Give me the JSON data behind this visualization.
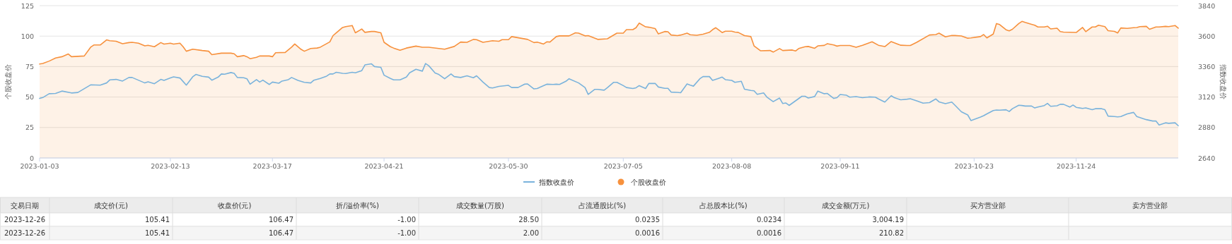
{
  "chart_data": [
    {
      "type": "line",
      "ylabel": "个股收盘价",
      "y2label": "指数收盘价",
      "ylim": [
        0,
        125
      ],
      "yticks": [
        0,
        25,
        50,
        75,
        100,
        125
      ],
      "y2lim": [
        2640,
        3840
      ],
      "y2ticks": [
        2640,
        2880,
        3120,
        3360,
        3600,
        3840
      ],
      "xlim": [
        "2023-01-03",
        "2023-12-26"
      ],
      "xticks": [
        "2023-01-03",
        "2023-02-13",
        "2023-03-17",
        "2023-04-21",
        "2023-05-30",
        "2023-07-05",
        "2023-08-08",
        "2023-09-11",
        "2023-10-23",
        "2023-11-24"
      ],
      "grid": "y",
      "legend": "bottom",
      "series": [
        {
          "name": "指数收盘价",
          "type": "line",
          "axis": "y2",
          "color": "#7ab3dc",
          "x": [
            "2023-01-03",
            "2023-01-04",
            "2023-01-06",
            "2023-01-08",
            "2023-01-10",
            "2023-01-13",
            "2023-01-15",
            "2023-01-19",
            "2023-01-22",
            "2023-01-24",
            "2023-01-25",
            "2023-01-27",
            "2023-01-29",
            "2023-01-31",
            "2023-02-01",
            "2023-02-05",
            "2023-02-06",
            "2023-02-08",
            "2023-02-10",
            "2023-02-11",
            "2023-02-13",
            "2023-02-14",
            "2023-02-16",
            "2023-02-17",
            "2023-02-18",
            "2023-02-20",
            "2023-02-21",
            "2023-02-23",
            "2023-02-25",
            "2023-02-26",
            "2023-02-28",
            "2023-03-01",
            "2023-03-02",
            "2023-03-04",
            "2023-03-05",
            "2023-03-06",
            "2023-03-08",
            "2023-03-09",
            "2023-03-10",
            "2023-03-12",
            "2023-03-13",
            "2023-03-14",
            "2023-03-16",
            "2023-03-17",
            "2023-03-19",
            "2023-03-20",
            "2023-03-22",
            "2023-03-23",
            "2023-03-25",
            "2023-03-27",
            "2023-03-29",
            "2023-03-30",
            "2023-04-01",
            "2023-04-03",
            "2023-04-04",
            "2023-04-05",
            "2023-04-06",
            "2023-04-08",
            "2023-04-09",
            "2023-04-11",
            "2023-04-12",
            "2023-04-14",
            "2023-04-15",
            "2023-04-17",
            "2023-04-18",
            "2023-04-20",
            "2023-04-21",
            "2023-04-23",
            "2023-04-24",
            "2023-04-26",
            "2023-04-28",
            "2023-04-29",
            "2023-05-01",
            "2023-05-03",
            "2023-05-04",
            "2023-05-05",
            "2023-05-07",
            "2023-05-08",
            "2023-05-10",
            "2023-05-12",
            "2023-05-13",
            "2023-05-15",
            "2023-05-17",
            "2023-05-19",
            "2023-05-20",
            "2023-05-22",
            "2023-05-24",
            "2023-05-25",
            "2023-05-27",
            "2023-05-30",
            "2023-05-31",
            "2023-06-02",
            "2023-06-04",
            "2023-06-05",
            "2023-06-07",
            "2023-06-08",
            "2023-06-11",
            "2023-06-13",
            "2023-06-14",
            "2023-06-15",
            "2023-06-17",
            "2023-06-18",
            "2023-06-21",
            "2023-06-23",
            "2023-06-24",
            "2023-06-26",
            "2023-06-27",
            "2023-06-29",
            "2023-06-30",
            "2023-07-02",
            "2023-07-03",
            "2023-07-05",
            "2023-07-06",
            "2023-07-08",
            "2023-07-09",
            "2023-07-10",
            "2023-07-12",
            "2023-07-13",
            "2023-07-15",
            "2023-07-16",
            "2023-07-18",
            "2023-07-19",
            "2023-07-20",
            "2023-07-22",
            "2023-07-23",
            "2023-07-25",
            "2023-07-26",
            "2023-07-27",
            "2023-07-29",
            "2023-07-30",
            "2023-08-01",
            "2023-08-02",
            "2023-08-04",
            "2023-08-05",
            "2023-08-06",
            "2023-08-08",
            "2023-08-09",
            "2023-08-11",
            "2023-08-12",
            "2023-08-14",
            "2023-08-15",
            "2023-08-16",
            "2023-08-18",
            "2023-08-19",
            "2023-08-21",
            "2023-08-23",
            "2023-08-24",
            "2023-08-25",
            "2023-08-26",
            "2023-08-28",
            "2023-08-30",
            "2023-08-31",
            "2023-09-01",
            "2023-09-03",
            "2023-09-04",
            "2023-09-06",
            "2023-09-07",
            "2023-09-09",
            "2023-09-10",
            "2023-09-11",
            "2023-09-13",
            "2023-09-14",
            "2023-09-16",
            "2023-09-18",
            "2023-09-20",
            "2023-09-22",
            "2023-09-23",
            "2023-09-25",
            "2023-09-27",
            "2023-09-28",
            "2023-09-30",
            "2023-10-02",
            "2023-10-03",
            "2023-10-05",
            "2023-10-07",
            "2023-10-09",
            "2023-10-11",
            "2023-10-12",
            "2023-10-14",
            "2023-10-16",
            "2023-10-17",
            "2023-10-19",
            "2023-10-21",
            "2023-10-22",
            "2023-10-25",
            "2023-10-26",
            "2023-10-27",
            "2023-10-29",
            "2023-10-30",
            "2023-10-31",
            "2023-11-02",
            "2023-11-03",
            "2023-11-04",
            "2023-11-06",
            "2023-11-07",
            "2023-11-08",
            "2023-11-10",
            "2023-11-11",
            "2023-11-12",
            "2023-11-14",
            "2023-11-15",
            "2023-11-16",
            "2023-11-18",
            "2023-11-19",
            "2023-11-20",
            "2023-11-22",
            "2023-11-23",
            "2023-11-24",
            "2023-11-26",
            "2023-11-27",
            "2023-11-29",
            "2023-11-30",
            "2023-12-02",
            "2023-12-03",
            "2023-12-04",
            "2023-12-06",
            "2023-12-07",
            "2023-12-08",
            "2023-12-10",
            "2023-12-12",
            "2023-12-13",
            "2023-12-14",
            "2023-12-16",
            "2023-12-18",
            "2023-12-19",
            "2023-12-20",
            "2023-12-22",
            "2023-12-23",
            "2023-12-25",
            "2023-12-26"
          ],
          "values": [
            3109,
            3116,
            3146,
            3148,
            3167,
            3152,
            3156,
            3216,
            3214,
            3231,
            3255,
            3259,
            3246,
            3274,
            3274,
            3231,
            3240,
            3225,
            3259,
            3251,
            3270,
            3279,
            3270,
            3242,
            3214,
            3279,
            3298,
            3283,
            3277,
            3253,
            3277,
            3302,
            3300,
            3313,
            3307,
            3274,
            3272,
            3264,
            3221,
            3257,
            3238,
            3253,
            3219,
            3238,
            3229,
            3246,
            3257,
            3274,
            3251,
            3236,
            3231,
            3253,
            3266,
            3285,
            3302,
            3302,
            3315,
            3307,
            3305,
            3315,
            3311,
            3328,
            3373,
            3382,
            3360,
            3354,
            3292,
            3266,
            3255,
            3255,
            3277,
            3311,
            3339,
            3324,
            3384,
            3367,
            3309,
            3300,
            3264,
            3302,
            3281,
            3274,
            3287,
            3272,
            3287,
            3238,
            3195,
            3191,
            3204,
            3212,
            3195,
            3195,
            3221,
            3223,
            3184,
            3187,
            3221,
            3219,
            3221,
            3219,
            3244,
            3264,
            3231,
            3195,
            3141,
            3180,
            3180,
            3174,
            3193,
            3236,
            3236,
            3210,
            3195,
            3187,
            3193,
            3210,
            3187,
            3227,
            3227,
            3199,
            3189,
            3189,
            3159,
            3157,
            3154,
            3223,
            3214,
            3206,
            3264,
            3281,
            3281,
            3251,
            3268,
            3277,
            3257,
            3251,
            3236,
            3244,
            3182,
            3172,
            3169,
            3141,
            3152,
            3120,
            3084,
            3112,
            3069,
            3073,
            3054,
            3090,
            3126,
            3126,
            3112,
            3124,
            3167,
            3146,
            3148,
            3109,
            3115,
            3140,
            3134,
            3119,
            3123,
            3115,
            3121,
            3119,
            3105,
            3080,
            3130,
            3115,
            3098,
            3103,
            3107,
            3090,
            3072,
            3076,
            3105,
            3082,
            3068,
            3080,
            3055,
            3004,
            2979,
            2935,
            2962,
            2973,
            2987,
            3014,
            3018,
            3016,
            3020,
            3006,
            3028,
            3055,
            3053,
            3049,
            3049,
            3034,
            3041,
            3053,
            3070,
            3047,
            3051,
            3063,
            3063,
            3041,
            3057,
            3039,
            3030,
            3034,
            3020,
            3028,
            3028,
            3020,
            2970,
            2966,
            2964,
            2966,
            2987,
            2999,
            2966,
            2958,
            2942,
            2931,
            2931,
            2900,
            2917,
            2913,
            2917,
            2894
          ]
        },
        {
          "name": "个股收盘价",
          "type": "area",
          "color": "#f7913d",
          "x": [
            "2023-01-03",
            "2023-01-04",
            "2023-01-06",
            "2023-01-08",
            "2023-01-10",
            "2023-01-12",
            "2023-01-13",
            "2023-01-17",
            "2023-01-19",
            "2023-01-20",
            "2023-01-22",
            "2023-01-24",
            "2023-01-25",
            "2023-01-27",
            "2023-01-29",
            "2023-01-31",
            "2023-02-01",
            "2023-02-03",
            "2023-02-05",
            "2023-02-06",
            "2023-02-08",
            "2023-02-10",
            "2023-02-11",
            "2023-02-13",
            "2023-02-14",
            "2023-02-16",
            "2023-02-17",
            "2023-02-18",
            "2023-02-20",
            "2023-02-23",
            "2023-02-25",
            "2023-02-26",
            "2023-03-01",
            "2023-03-04",
            "2023-03-05",
            "2023-03-06",
            "2023-03-08",
            "2023-03-09",
            "2023-03-10",
            "2023-03-12",
            "2023-03-13",
            "2023-03-16",
            "2023-03-17",
            "2023-03-18",
            "2023-03-21",
            "2023-03-23",
            "2023-03-24",
            "2023-03-26",
            "2023-03-27",
            "2023-03-29",
            "2023-03-31",
            "2023-04-01",
            "2023-04-03",
            "2023-04-04",
            "2023-04-05",
            "2023-04-06",
            "2023-04-08",
            "2023-04-09",
            "2023-04-11",
            "2023-04-12",
            "2023-04-14",
            "2023-04-15",
            "2023-04-17",
            "2023-04-18",
            "2023-04-20",
            "2023-04-21",
            "2023-04-23",
            "2023-04-24",
            "2023-04-26",
            "2023-04-28",
            "2023-05-01",
            "2023-05-03",
            "2023-05-05",
            "2023-05-10",
            "2023-05-13",
            "2023-05-15",
            "2023-05-17",
            "2023-05-19",
            "2023-05-20",
            "2023-05-22",
            "2023-05-25",
            "2023-05-27",
            "2023-05-28",
            "2023-05-30",
            "2023-05-31",
            "2023-06-05",
            "2023-06-07",
            "2023-06-08",
            "2023-06-10",
            "2023-06-11",
            "2023-06-12",
            "2023-06-14",
            "2023-06-15",
            "2023-06-18",
            "2023-06-20",
            "2023-06-21",
            "2023-06-23",
            "2023-06-24",
            "2023-06-27",
            "2023-06-30",
            "2023-07-03",
            "2023-07-05",
            "2023-07-06",
            "2023-07-08",
            "2023-07-09",
            "2023-07-10",
            "2023-07-12",
            "2023-07-13",
            "2023-07-15",
            "2023-07-16",
            "2023-07-18",
            "2023-07-19",
            "2023-07-20",
            "2023-07-22",
            "2023-07-23",
            "2023-07-25",
            "2023-07-26",
            "2023-07-28",
            "2023-07-30",
            "2023-08-01",
            "2023-08-02",
            "2023-08-03",
            "2023-08-05",
            "2023-08-06",
            "2023-08-08",
            "2023-08-09",
            "2023-08-10",
            "2023-08-12",
            "2023-08-14",
            "2023-08-15",
            "2023-08-17",
            "2023-08-20",
            "2023-08-21",
            "2023-08-23",
            "2023-08-24",
            "2023-08-27",
            "2023-08-28",
            "2023-08-29",
            "2023-08-31",
            "2023-09-01",
            "2023-09-03",
            "2023-09-04",
            "2023-09-06",
            "2023-09-07",
            "2023-09-09",
            "2023-09-10",
            "2023-09-11",
            "2023-09-14",
            "2023-09-16",
            "2023-09-18",
            "2023-09-21",
            "2023-09-23",
            "2023-09-25",
            "2023-09-27",
            "2023-09-30",
            "2023-10-02",
            "2023-10-03",
            "2023-10-05",
            "2023-10-09",
            "2023-10-11",
            "2023-10-12",
            "2023-10-14",
            "2023-10-16",
            "2023-10-17",
            "2023-10-19",
            "2023-10-21",
            "2023-10-22",
            "2023-10-25",
            "2023-10-26",
            "2023-10-27",
            "2023-10-29",
            "2023-10-30",
            "2023-10-31",
            "2023-11-02",
            "2023-11-03",
            "2023-11-04",
            "2023-11-06",
            "2023-11-07",
            "2023-11-08",
            "2023-11-10",
            "2023-11-11",
            "2023-11-12",
            "2023-11-14",
            "2023-11-15",
            "2023-11-16",
            "2023-11-18",
            "2023-11-19",
            "2023-11-20",
            "2023-11-24",
            "2023-11-26",
            "2023-11-27",
            "2023-11-29",
            "2023-11-30",
            "2023-12-01",
            "2023-12-03",
            "2023-12-04",
            "2023-12-06",
            "2023-12-07",
            "2023-12-08",
            "2023-12-10",
            "2023-12-12",
            "2023-12-13",
            "2023-12-14",
            "2023-12-16",
            "2023-12-17",
            "2023-12-19",
            "2023-12-20",
            "2023-12-22",
            "2023-12-23",
            "2023-12-25",
            "2023-12-26"
          ],
          "values": [
            77.1,
            77.5,
            79.5,
            82.0,
            83.1,
            85.3,
            83.1,
            83.7,
            90.9,
            92.7,
            92.7,
            96.9,
            96.2,
            95.8,
            93.8,
            94.7,
            94.9,
            94.2,
            92.0,
            92.4,
            91.3,
            94.7,
            93.5,
            94.2,
            93.5,
            94.2,
            91.3,
            87.6,
            89.3,
            88.2,
            87.6,
            84.8,
            86.0,
            86.0,
            85.5,
            83.1,
            84.0,
            83.1,
            81.5,
            82.6,
            83.7,
            83.7,
            83.1,
            86.4,
            86.6,
            90.9,
            93.5,
            89.1,
            87.6,
            89.8,
            90.2,
            90.9,
            93.8,
            95.3,
            100.4,
            102.7,
            107.1,
            107.8,
            108.7,
            102.7,
            105.8,
            103.1,
            103.8,
            103.8,
            102.7,
            94.9,
            91.3,
            90.2,
            88.4,
            90.2,
            91.8,
            90.9,
            90.9,
            89.3,
            91.5,
            95.1,
            94.9,
            97.3,
            97.1,
            94.9,
            96.2,
            95.8,
            97.1,
            97.1,
            99.6,
            97.3,
            94.7,
            95.1,
            93.5,
            95.3,
            95.1,
            99.6,
            100.2,
            100.2,
            102.7,
            102.4,
            100.2,
            100.4,
            97.3,
            97.8,
            102.4,
            102.4,
            105.3,
            105.3,
            106.9,
            110.7,
            107.6,
            107.3,
            106.2,
            101.8,
            103.8,
            103.6,
            100.9,
            100.4,
            100.9,
            102.4,
            101.1,
            100.7,
            101.6,
            103.1,
            105.3,
            106.9,
            102.9,
            104.0,
            104.0,
            103.3,
            103.1,
            100.4,
            99.6,
            92.0,
            88.0,
            88.2,
            86.9,
            89.8,
            88.2,
            88.6,
            87.8,
            89.8,
            91.3,
            91.5,
            90.0,
            92.0,
            92.4,
            93.8,
            92.7,
            91.8,
            92.3,
            92.3,
            90.8,
            92.5,
            95.3,
            92.5,
            91.4,
            95.5,
            92.5,
            92.3,
            92.3,
            94.9,
            100.9,
            101.3,
            102.4,
            99.4,
            100.5,
            100.5,
            100.1,
            98.3,
            98.5,
            99.6,
            101.3,
            98.5,
            101.7,
            110.3,
            109.5,
            105.2,
            104.3,
            105.6,
            110.3,
            112.1,
            111.2,
            109.7,
            108.9,
            107.5,
            107.5,
            108.1,
            105.9,
            106.5,
            103.7,
            103.3,
            103.0,
            107.1,
            103.7,
            107.5,
            107.5,
            108.9,
            107.8,
            104.5,
            103.9,
            102.6,
            106.7,
            106.3,
            106.9,
            107.1,
            107.8,
            108.0,
            105.6,
            107.5,
            107.5,
            108.0,
            107.8,
            108.7,
            106.5
          ]
        }
      ]
    },
    {
      "type": "other",
      "categories": [
        "交易日期",
        "成交价(元)",
        "收盘价(元)",
        "折/溢价率(%)",
        "成交数量(万股)",
        "占流通股比(%)",
        "占总股本比(%)",
        "成交金额(万元)",
        "买方营业部",
        "卖方营业部"
      ],
      "cell_labels": [
        [
          "2023-12-26",
          "105.41",
          "106.47",
          "-1.00",
          "28.50",
          "0.0235",
          "0.0234",
          "3,004.19",
          null,
          null
        ],
        [
          "2023-12-26",
          "105.41",
          "106.47",
          "-1.00",
          "2.00",
          "0.0016",
          "0.0016",
          "210.82",
          null,
          null
        ]
      ]
    }
  ]
}
